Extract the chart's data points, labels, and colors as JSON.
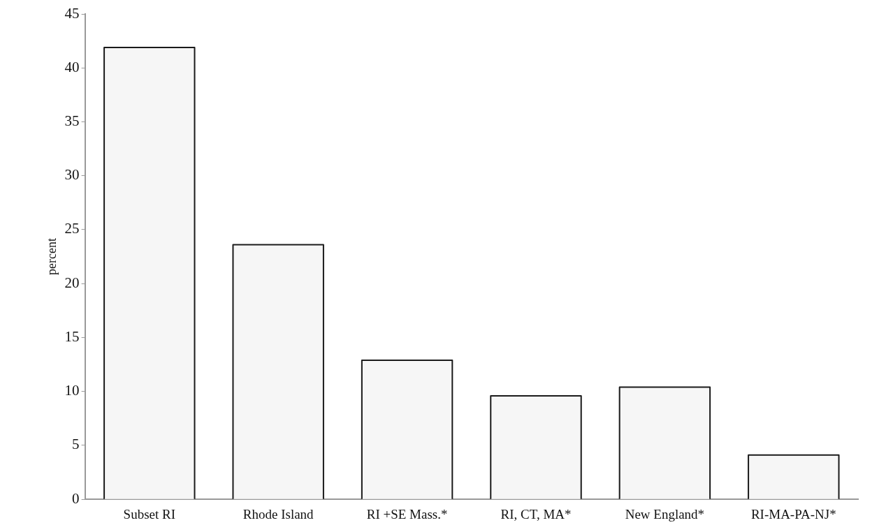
{
  "chart_data": {
    "type": "bar",
    "ylabel": "percent",
    "categories": [
      "Subset RI",
      "Rhode Island",
      "RI +SE Mass.*",
      "RI, CT, MA*",
      "New England*",
      "RI-MA-PA-NJ*"
    ],
    "values": [
      41.9,
      23.6,
      12.9,
      9.6,
      10.4,
      4.1
    ],
    "color": "#f6f6f6",
    "ylim": [
      0,
      45
    ],
    "yticks": [
      0,
      5,
      10,
      15,
      20,
      25,
      30,
      35,
      40,
      45
    ],
    "grid": false,
    "legend": false
  }
}
